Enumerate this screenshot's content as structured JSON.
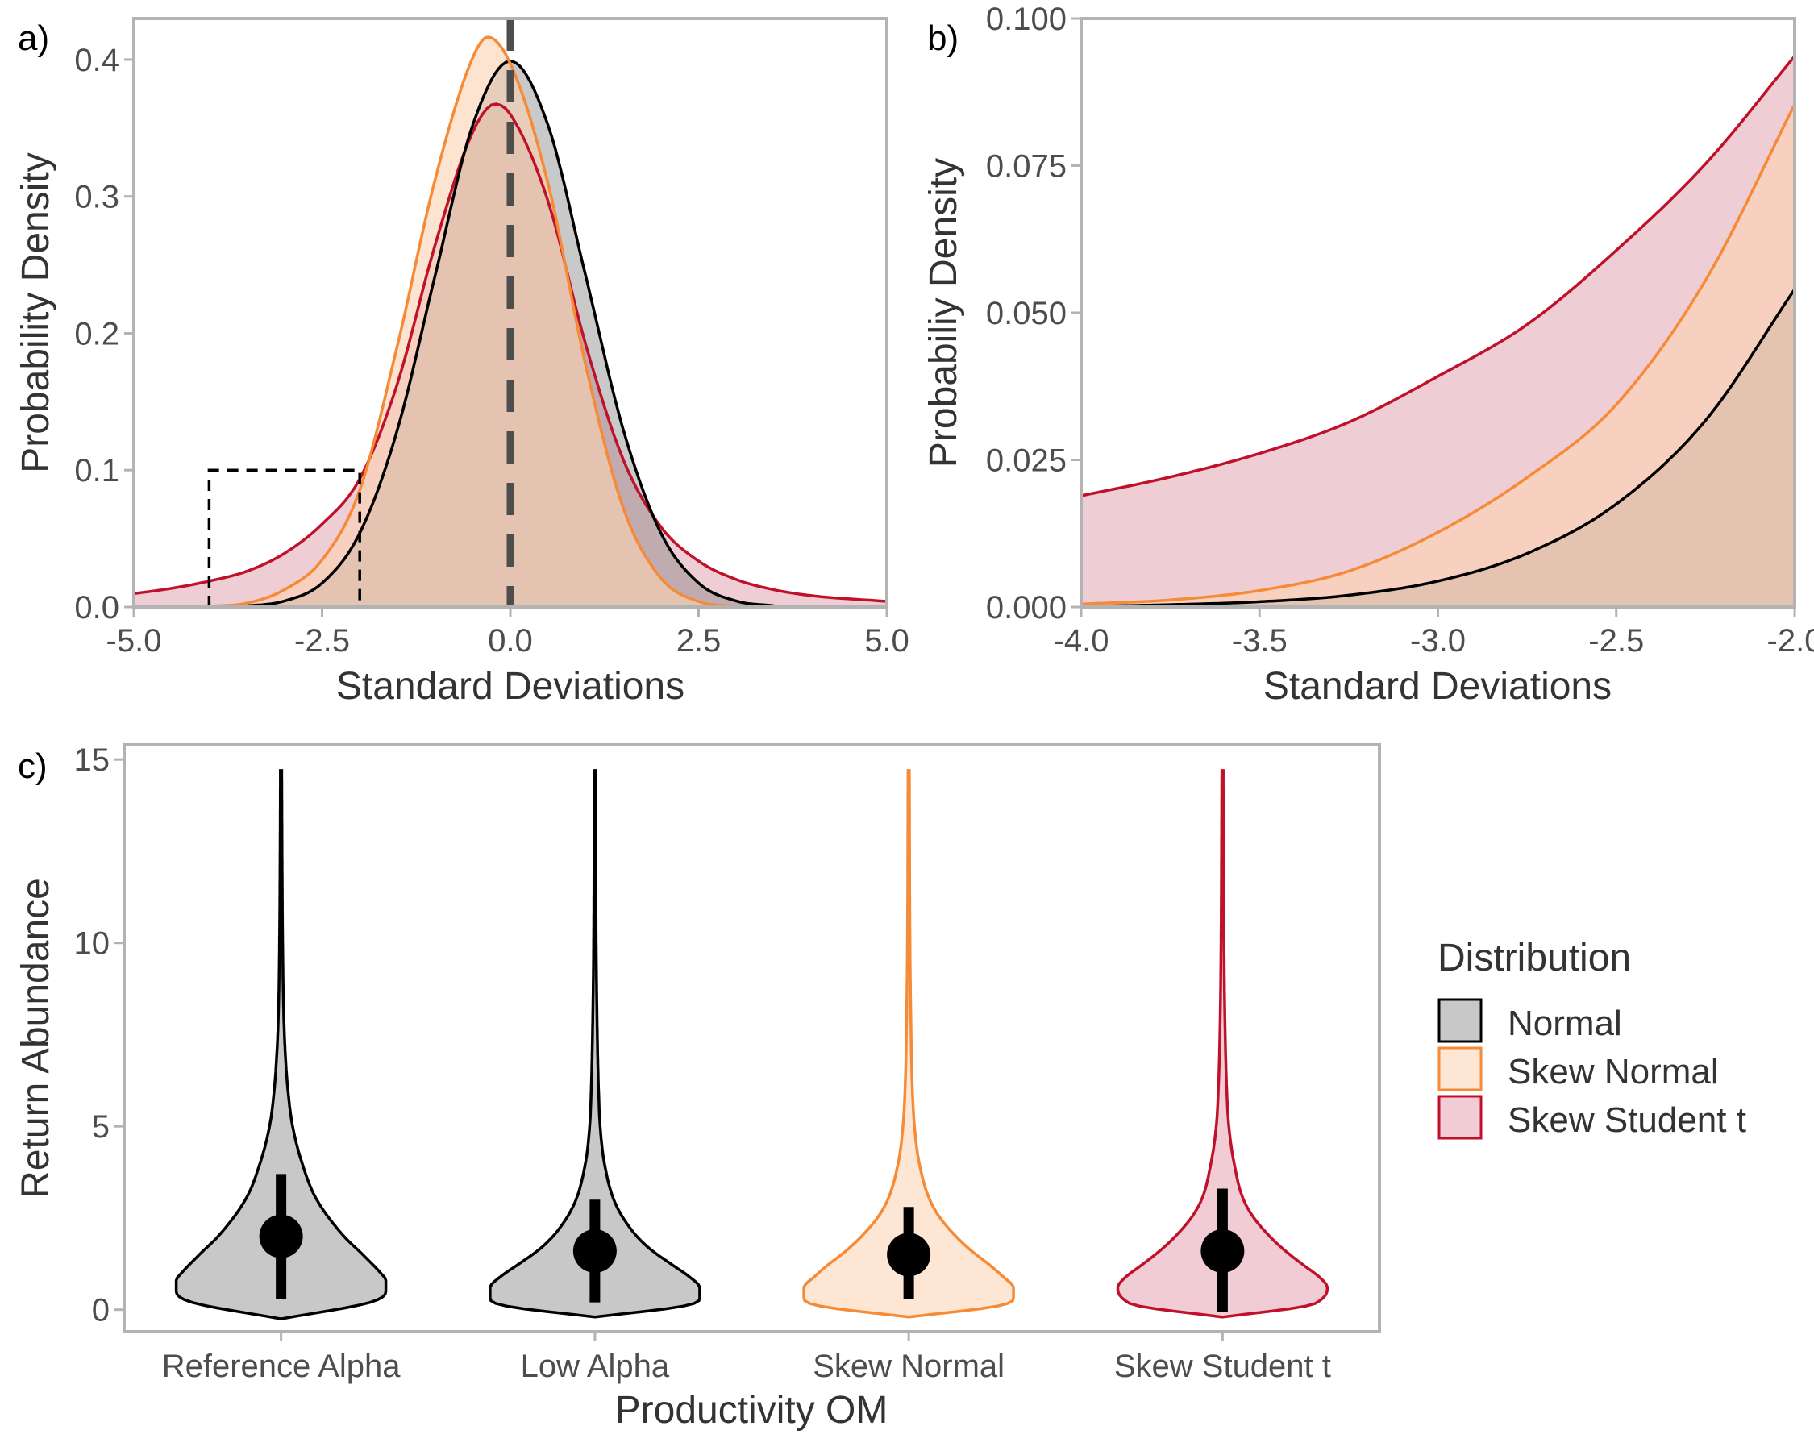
{
  "colors": {
    "normal_line": "#000000",
    "normal_fill": "#7f7f7f",
    "skewnormal_line": "#f58a37",
    "skewnormal_fill": "#fcd2b0",
    "skewt_line": "#c0112b",
    "skewt_fill": "#dc90a2",
    "frame": "#b3b3b3"
  },
  "legend": {
    "title": "Distribution",
    "items": [
      {
        "label": "Normal",
        "icon": "normal-swatch"
      },
      {
        "label": "Skew Normal",
        "icon": "skew-normal-swatch"
      },
      {
        "label": "Skew Student t",
        "icon": "skew-student-t-swatch"
      }
    ]
  },
  "chart_data": [
    {
      "panel_label": "a)",
      "type": "area",
      "xlabel": "Standard Deviations",
      "ylabel": "Probability Density",
      "xlim": [
        -5,
        5
      ],
      "ylim": [
        0,
        0.43
      ],
      "x_ticks": [
        -5,
        -2.5,
        0,
        2.5,
        5
      ],
      "x_tick_labels": [
        "-5.0",
        "-2.5",
        "0.0",
        "2.5",
        "5.0"
      ],
      "y_ticks": [
        0,
        0.1,
        0.2,
        0.3,
        0.4
      ],
      "y_tick_labels": [
        "0.0",
        "0.1",
        "0.2",
        "0.3",
        "0.4"
      ],
      "reference_line_x": 0,
      "zoom_box": {
        "x": [
          -4,
          -2
        ],
        "y": [
          0,
          0.1
        ]
      },
      "series": [
        {
          "name": "Normal",
          "x": [
            -4.0,
            -3.5,
            -3.0,
            -2.5,
            -2.0,
            -1.5,
            -1.0,
            -0.5,
            0.0,
            0.5,
            1.0,
            1.5,
            2.0,
            2.5,
            3.0,
            3.5
          ],
          "y": [
            0.0001,
            0.0009,
            0.0044,
            0.0175,
            0.054,
            0.1295,
            0.242,
            0.3521,
            0.3989,
            0.3521,
            0.242,
            0.1295,
            0.054,
            0.0175,
            0.0044,
            0.0009
          ]
        },
        {
          "name": "Skew Normal",
          "x": [
            -4.0,
            -3.5,
            -3.0,
            -2.5,
            -2.0,
            -1.5,
            -1.0,
            -0.5,
            -0.3,
            0.0,
            0.5,
            1.0,
            1.5,
            2.0,
            2.5,
            3.0
          ],
          "y": [
            0.0005,
            0.0028,
            0.0127,
            0.0344,
            0.0854,
            0.191,
            0.3122,
            0.4014,
            0.4165,
            0.397,
            0.3096,
            0.1768,
            0.0723,
            0.0211,
            0.0041,
            0.0005
          ]
        },
        {
          "name": "Skew Student t",
          "x": [
            -5.0,
            -4.5,
            -4.0,
            -3.5,
            -3.0,
            -2.5,
            -2.0,
            -1.5,
            -1.0,
            -0.5,
            -0.2,
            0.0,
            0.5,
            1.0,
            1.5,
            2.0,
            2.5,
            3.0,
            3.5,
            4.0,
            5.0
          ],
          "y": [
            0.0098,
            0.0136,
            0.0189,
            0.0261,
            0.0392,
            0.0606,
            0.0936,
            0.1632,
            0.2644,
            0.347,
            0.3676,
            0.36,
            0.2966,
            0.1919,
            0.1076,
            0.0585,
            0.0336,
            0.0201,
            0.0126,
            0.0083,
            0.0041
          ]
        }
      ]
    },
    {
      "panel_label": "b)",
      "type": "area",
      "xlabel": "Standard Deviations",
      "ylabel": "Probabiliy Density",
      "xlim": [
        -4,
        -2
      ],
      "ylim": [
        0,
        0.1
      ],
      "x_ticks": [
        -4,
        -3.5,
        -3,
        -2.5,
        -2
      ],
      "x_tick_labels": [
        "-4.0",
        "-3.5",
        "-3.0",
        "-2.5",
        "-2.0"
      ],
      "y_ticks": [
        0,
        0.025,
        0.05,
        0.075,
        0.1
      ],
      "y_tick_labels": [
        "0.000",
        "0.025",
        "0.050",
        "0.075",
        "0.100"
      ],
      "series": [
        {
          "name": "Normal",
          "x": [
            -4.0,
            -3.75,
            -3.5,
            -3.25,
            -3.0,
            -2.75,
            -2.5,
            -2.25,
            -2.0
          ],
          "y": [
            0.0001,
            0.0004,
            0.0009,
            0.002,
            0.0044,
            0.0091,
            0.0175,
            0.0317,
            0.054
          ]
        },
        {
          "name": "Skew Normal",
          "x": [
            -4.0,
            -3.75,
            -3.5,
            -3.25,
            -3.0,
            -2.75,
            -2.5,
            -2.25,
            -2.0
          ],
          "y": [
            0.0005,
            0.0012,
            0.0028,
            0.0061,
            0.0127,
            0.022,
            0.0344,
            0.0555,
            0.0854
          ]
        },
        {
          "name": "Skew Student t",
          "x": [
            -4.0,
            -3.75,
            -3.5,
            -3.25,
            -3.0,
            -2.75,
            -2.5,
            -2.25,
            -2.0
          ],
          "y": [
            0.0189,
            0.0221,
            0.0261,
            0.0314,
            0.0392,
            0.048,
            0.0606,
            0.0753,
            0.0936
          ]
        }
      ]
    },
    {
      "panel_label": "c)",
      "type": "violin",
      "xlabel": "Productivity OM",
      "ylabel": "Return Abundance",
      "ylim": [
        -0.6,
        15.4
      ],
      "y_ticks": [
        0,
        5,
        10,
        15
      ],
      "y_tick_labels": [
        "0",
        "5",
        "10",
        "15"
      ],
      "categories": [
        "Reference Alpha",
        "Low Alpha",
        "Skew Normal",
        "Skew Student t"
      ],
      "series": [
        {
          "category": "Reference Alpha",
          "distribution": "Normal",
          "y_min": -0.25,
          "y_max": 14.7,
          "density_y": [
            -0.25,
            0.2,
            0.5,
            0.8,
            1.0,
            1.5,
            2.0,
            3.0,
            4.0,
            5.0,
            6.0,
            7.0,
            8.0,
            10.0,
            12.0,
            14.7
          ],
          "half_width": [
            0.0,
            0.85,
            1.0,
            1.0,
            0.95,
            0.78,
            0.6,
            0.34,
            0.2,
            0.11,
            0.065,
            0.04,
            0.026,
            0.015,
            0.01,
            0.006
          ],
          "median": 2.0,
          "interval": [
            0.3,
            3.7
          ]
        },
        {
          "category": "Low Alpha",
          "distribution": "Normal",
          "y_min": -0.2,
          "y_max": 14.7,
          "density_y": [
            -0.2,
            0.1,
            0.3,
            0.6,
            0.9,
            1.2,
            1.6,
            2.0,
            2.5,
            3.0,
            4.0,
            5.0,
            6.0,
            8.0,
            10.0,
            14.7
          ],
          "half_width": [
            0.0,
            0.85,
            1.0,
            1.0,
            0.9,
            0.75,
            0.55,
            0.4,
            0.27,
            0.18,
            0.09,
            0.05,
            0.035,
            0.02,
            0.012,
            0.006
          ],
          "median": 1.6,
          "interval": [
            0.2,
            3.0
          ]
        },
        {
          "category": "Skew Normal",
          "distribution": "Skew Normal",
          "y_min": -0.2,
          "y_max": 14.7,
          "density_y": [
            -0.2,
            0.1,
            0.3,
            0.6,
            0.9,
            1.2,
            1.6,
            2.0,
            2.5,
            3.0,
            4.0,
            5.0,
            6.0,
            8.0,
            10.0,
            14.7
          ],
          "half_width": [
            0.0,
            0.85,
            1.0,
            1.0,
            0.9,
            0.78,
            0.6,
            0.45,
            0.3,
            0.2,
            0.1,
            0.055,
            0.035,
            0.02,
            0.012,
            0.006
          ],
          "median": 1.5,
          "interval": [
            0.3,
            2.8
          ]
        },
        {
          "category": "Skew Student t",
          "distribution": "Skew Student t",
          "y_min": -0.2,
          "y_max": 14.7,
          "density_y": [
            -0.2,
            0.1,
            0.3,
            0.6,
            0.9,
            1.2,
            1.6,
            2.0,
            2.5,
            3.0,
            4.0,
            5.0,
            6.0,
            8.0,
            10.0,
            14.7
          ],
          "half_width": [
            0.0,
            0.8,
            0.95,
            1.0,
            0.92,
            0.78,
            0.6,
            0.45,
            0.3,
            0.2,
            0.11,
            0.06,
            0.04,
            0.022,
            0.014,
            0.006
          ],
          "median": 1.6,
          "interval": [
            -0.05,
            3.3
          ]
        }
      ]
    }
  ]
}
